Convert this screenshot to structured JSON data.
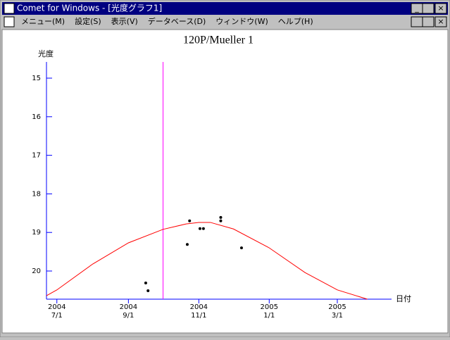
{
  "window": {
    "title": "Comet for Windows - [光度グラフ1]",
    "menu": [
      "メニュー(M)",
      "設定(S)",
      "表示(V)",
      "データベース(D)",
      "ウィンドウ(W)",
      "ヘルプ(H)"
    ]
  },
  "chart_data": {
    "type": "scatter",
    "title": "120P/Mueller 1",
    "y_label": "光度",
    "x_label": "日付",
    "y_inverted": true,
    "xlim": [
      "2004-06-22",
      "2005-04-17"
    ],
    "ylim": [
      14.58,
      20.73
    ],
    "yticks": [
      15,
      16,
      17,
      18,
      19,
      20
    ],
    "xticks": [
      {
        "value": "2004-07-01",
        "label": [
          "2004",
          "7/1"
        ]
      },
      {
        "value": "2004-09-01",
        "label": [
          "2004",
          "9/1"
        ]
      },
      {
        "value": "2004-11-01",
        "label": [
          "2004",
          "11/1"
        ]
      },
      {
        "value": "2005-01-01",
        "label": [
          "2005",
          "1/1"
        ]
      },
      {
        "value": "2005-03-01",
        "label": [
          "2005",
          "3/1"
        ]
      }
    ],
    "axis_color": "#0000ff",
    "vline": {
      "x": "2004-10-01",
      "color": "#ff00ff"
    },
    "series": [
      {
        "type": "scatter",
        "color": "#000000",
        "x": [
          "2004-09-16",
          "2004-09-18",
          "2004-10-22",
          "2004-10-24",
          "2004-11-02",
          "2004-11-05",
          "2004-11-20",
          "2004-11-20",
          "2004-12-08"
        ],
        "values": [
          20.31,
          20.51,
          19.31,
          18.7,
          18.9,
          18.9,
          18.61,
          18.7,
          19.4
        ]
      },
      {
        "type": "line",
        "color": "#ff0000",
        "x": [
          "2004-06-22",
          "2004-07-01",
          "2004-08-01",
          "2004-09-01",
          "2004-10-01",
          "2004-10-21",
          "2004-11-01",
          "2004-11-11",
          "2004-12-01",
          "2005-01-01",
          "2005-02-01",
          "2005-03-01",
          "2005-03-27"
        ],
        "values": [
          20.64,
          20.49,
          19.82,
          19.27,
          18.92,
          18.78,
          18.74,
          18.74,
          18.91,
          19.4,
          20.04,
          20.49,
          20.73
        ]
      }
    ]
  }
}
